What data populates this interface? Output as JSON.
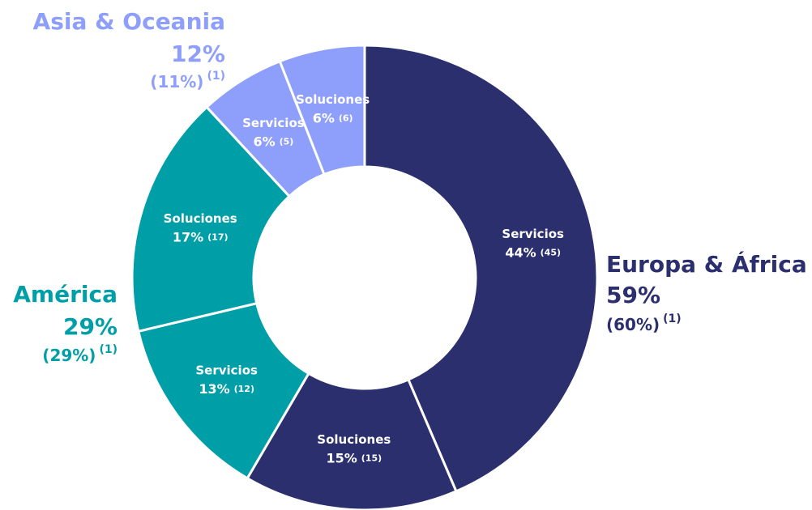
{
  "chart_data": {
    "type": "donut",
    "categories": [
      "Servicios",
      "Soluciones",
      "Servicios",
      "Soluciones",
      "Servicios",
      "Soluciones"
    ],
    "values": [
      44,
      15,
      13,
      17,
      6,
      6
    ],
    "value_labels": [
      "44%",
      "15%",
      "13%",
      "17%",
      "6%",
      "6%"
    ],
    "prior_labels": [
      "(45)",
      "(15)",
      "(12)",
      "(17)",
      "(5)",
      "(6)"
    ],
    "colors": [
      "#2b2f6e",
      "#2b2f6e",
      "#009fa8",
      "#009fa8",
      "#8e9ffb",
      "#8e9ffb"
    ],
    "groups": [
      {
        "name": "Europa & África",
        "value": 59,
        "value_label": "59%",
        "prior_label": "(60%)",
        "footnote": "(1)",
        "color": "#2b2f6e"
      },
      {
        "name": "América",
        "value": 29,
        "value_label": "29%",
        "prior_label": "(29%)",
        "footnote": "(1)",
        "color": "#009fa8"
      },
      {
        "name": "Asia & Oceania",
        "value": 12,
        "value_label": "12%",
        "prior_label": "(11%)",
        "footnote": "(1)",
        "color": "#8e9ffb"
      }
    ]
  }
}
